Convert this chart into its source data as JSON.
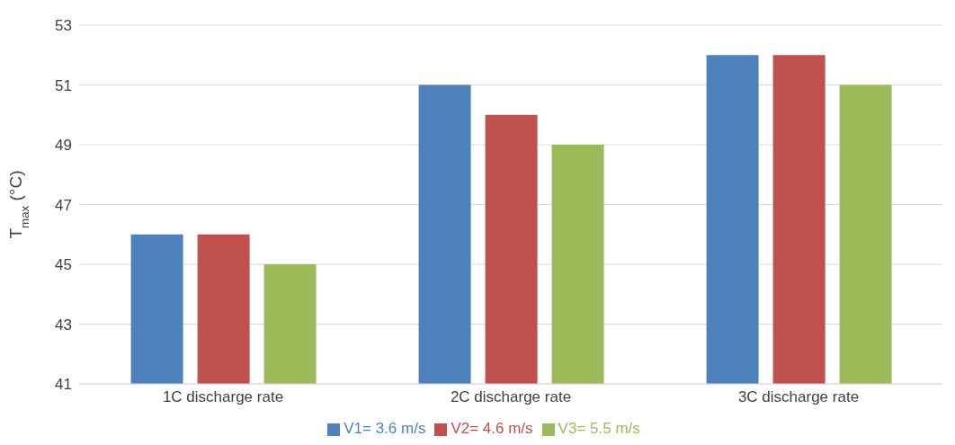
{
  "chart_data": {
    "type": "bar",
    "ylabel": "T$_{max}$ (°C)",
    "categories": [
      "1C discharge rate",
      "2C discharge rate",
      "3C discharge rate"
    ],
    "series": [
      {
        "name": "V1= 3.6 m/s",
        "color": "#4f81bd",
        "values": [
          46,
          51,
          52
        ]
      },
      {
        "name": "V2= 4.6 m/s",
        "color": "#c0504d",
        "values": [
          46,
          50,
          52
        ]
      },
      {
        "name": "V3= 5.5 m/s",
        "color": "#9bbb59",
        "values": [
          45,
          49,
          51
        ]
      }
    ],
    "ylim": [
      41,
      53
    ],
    "yticks": [
      41,
      43,
      45,
      47,
      49,
      51,
      53
    ],
    "grid": "y",
    "legend": "bottom"
  }
}
